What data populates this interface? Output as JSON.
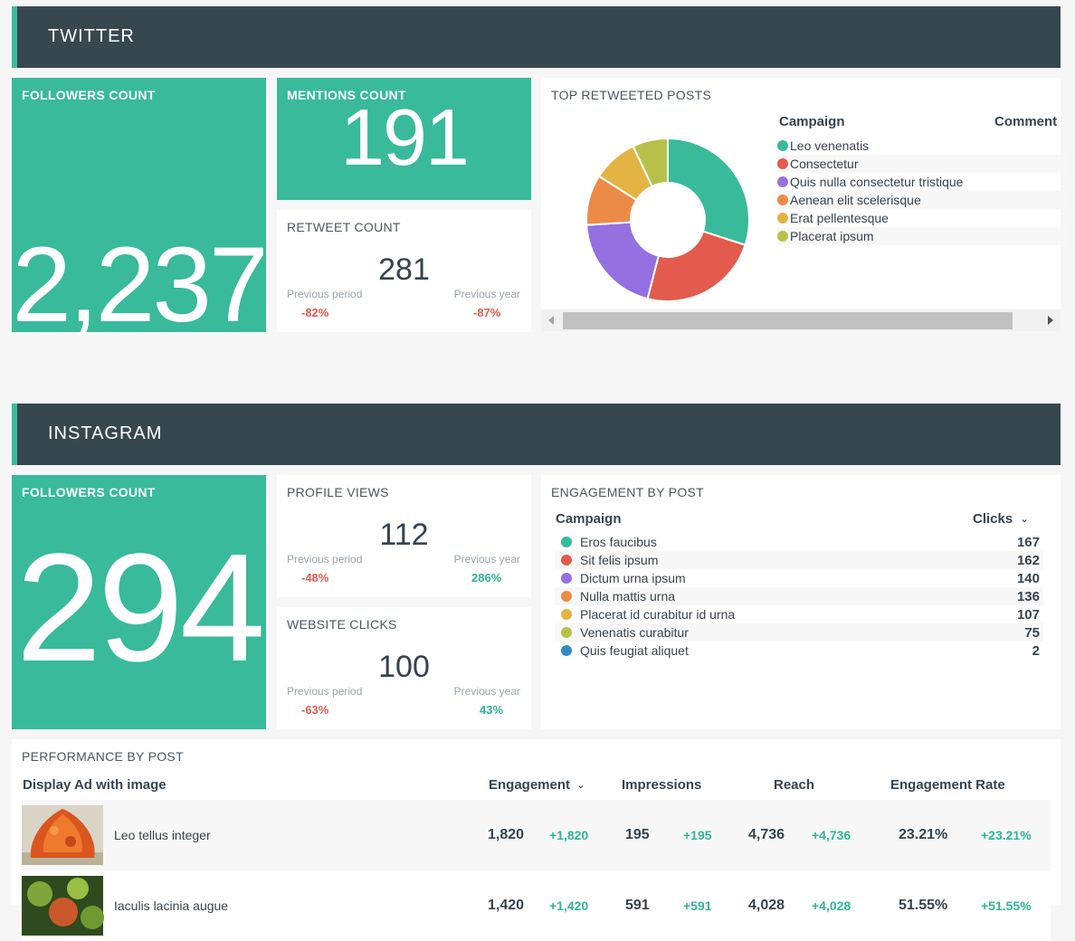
{
  "twitter": {
    "title": "TWITTER",
    "followers": {
      "label": "FOLLOWERS COUNT",
      "value": "2,237"
    },
    "mentions": {
      "label": "MENTIONS COUNT",
      "value": "191"
    },
    "retweets": {
      "label": "RETWEET COUNT",
      "value": "281",
      "prev_period_label": "Previous period",
      "prev_period_value": "-82%",
      "prev_year_label": "Previous year",
      "prev_year_value": "-87%"
    },
    "top_retweeted": {
      "label": "TOP RETWEETED POSTS",
      "col_campaign": "Campaign",
      "col_comments": "Comment",
      "legend": [
        {
          "name": "Leo venenatis",
          "color": "#38ba9b"
        },
        {
          "name": "Consectetur",
          "color": "#e25b4c"
        },
        {
          "name": "Quis nulla consectetur tristique",
          "color": "#9470e0"
        },
        {
          "name": "Aenean elit scelerisque",
          "color": "#ec8b47"
        },
        {
          "name": "Erat pellentesque",
          "color": "#e3b444"
        },
        {
          "name": "Placerat ipsum",
          "color": "#b7c14a"
        }
      ]
    }
  },
  "chart_data": {
    "type": "pie",
    "title": "TOP RETWEETED POSTS",
    "categories": [
      "Leo venenatis",
      "Consectetur",
      "Quis nulla consectetur tristique",
      "Aenean elit scelerisque",
      "Erat pellentesque",
      "Placerat ipsum"
    ],
    "values": [
      30,
      24,
      20,
      10,
      9,
      7
    ],
    "colors": [
      "#38ba9b",
      "#e25b4c",
      "#9470e0",
      "#ec8b47",
      "#e3b444",
      "#b7c14a"
    ]
  },
  "instagram": {
    "title": "INSTAGRAM",
    "followers": {
      "label": "FOLLOWERS COUNT",
      "value": "294"
    },
    "profile_views": {
      "label": "PROFILE VIEWS",
      "value": "112",
      "prev_period_label": "Previous period",
      "prev_period_value": "-48%",
      "prev_year_label": "Previous year",
      "prev_year_value": "286%"
    },
    "website_clicks": {
      "label": "WEBSITE CLICKS",
      "value": "100",
      "prev_period_label": "Previous period",
      "prev_period_value": "-63%",
      "prev_year_label": "Previous year",
      "prev_year_value": "43%"
    },
    "engagement": {
      "label": "ENGAGEMENT BY POST",
      "col_campaign": "Campaign",
      "col_clicks": "Clicks",
      "rows": [
        {
          "name": "Eros faucibus",
          "value": "167",
          "color": "#38ba9b"
        },
        {
          "name": "Sit felis ipsum",
          "value": "162",
          "color": "#e25b4c"
        },
        {
          "name": "Dictum urna ipsum",
          "value": "140",
          "color": "#9470e0"
        },
        {
          "name": "Nulla mattis urna",
          "value": "136",
          "color": "#ec8b47"
        },
        {
          "name": "Placerat id curabitur id urna",
          "value": "107",
          "color": "#e3b444"
        },
        {
          "name": "Venenatis curabitur",
          "value": "75",
          "color": "#b7c14a"
        },
        {
          "name": "Quis feugiat aliquet",
          "value": "2",
          "color": "#2f8cc4"
        }
      ]
    },
    "performance": {
      "label": "PERFORMANCE BY POST",
      "col_ad": "Display Ad with image",
      "col_engagement": "Engagement",
      "col_impressions": "Impressions",
      "col_reach": "Reach",
      "col_rate": "Engagement Rate",
      "rows": [
        {
          "name": "Leo tellus integer",
          "engagement": "1,820",
          "engagement_delta": "+1,820",
          "impressions": "195",
          "impressions_delta": "+195",
          "reach": "4,736",
          "reach_delta": "+4,736",
          "rate": "23.21%",
          "rate_delta": "+23.21%"
        },
        {
          "name": "Iaculis lacinia augue",
          "engagement": "1,420",
          "engagement_delta": "+1,420",
          "impressions": "591",
          "impressions_delta": "+591",
          "reach": "4,028",
          "reach_delta": "+4,028",
          "rate": "51.55%",
          "rate_delta": "+51.55%"
        }
      ]
    }
  }
}
